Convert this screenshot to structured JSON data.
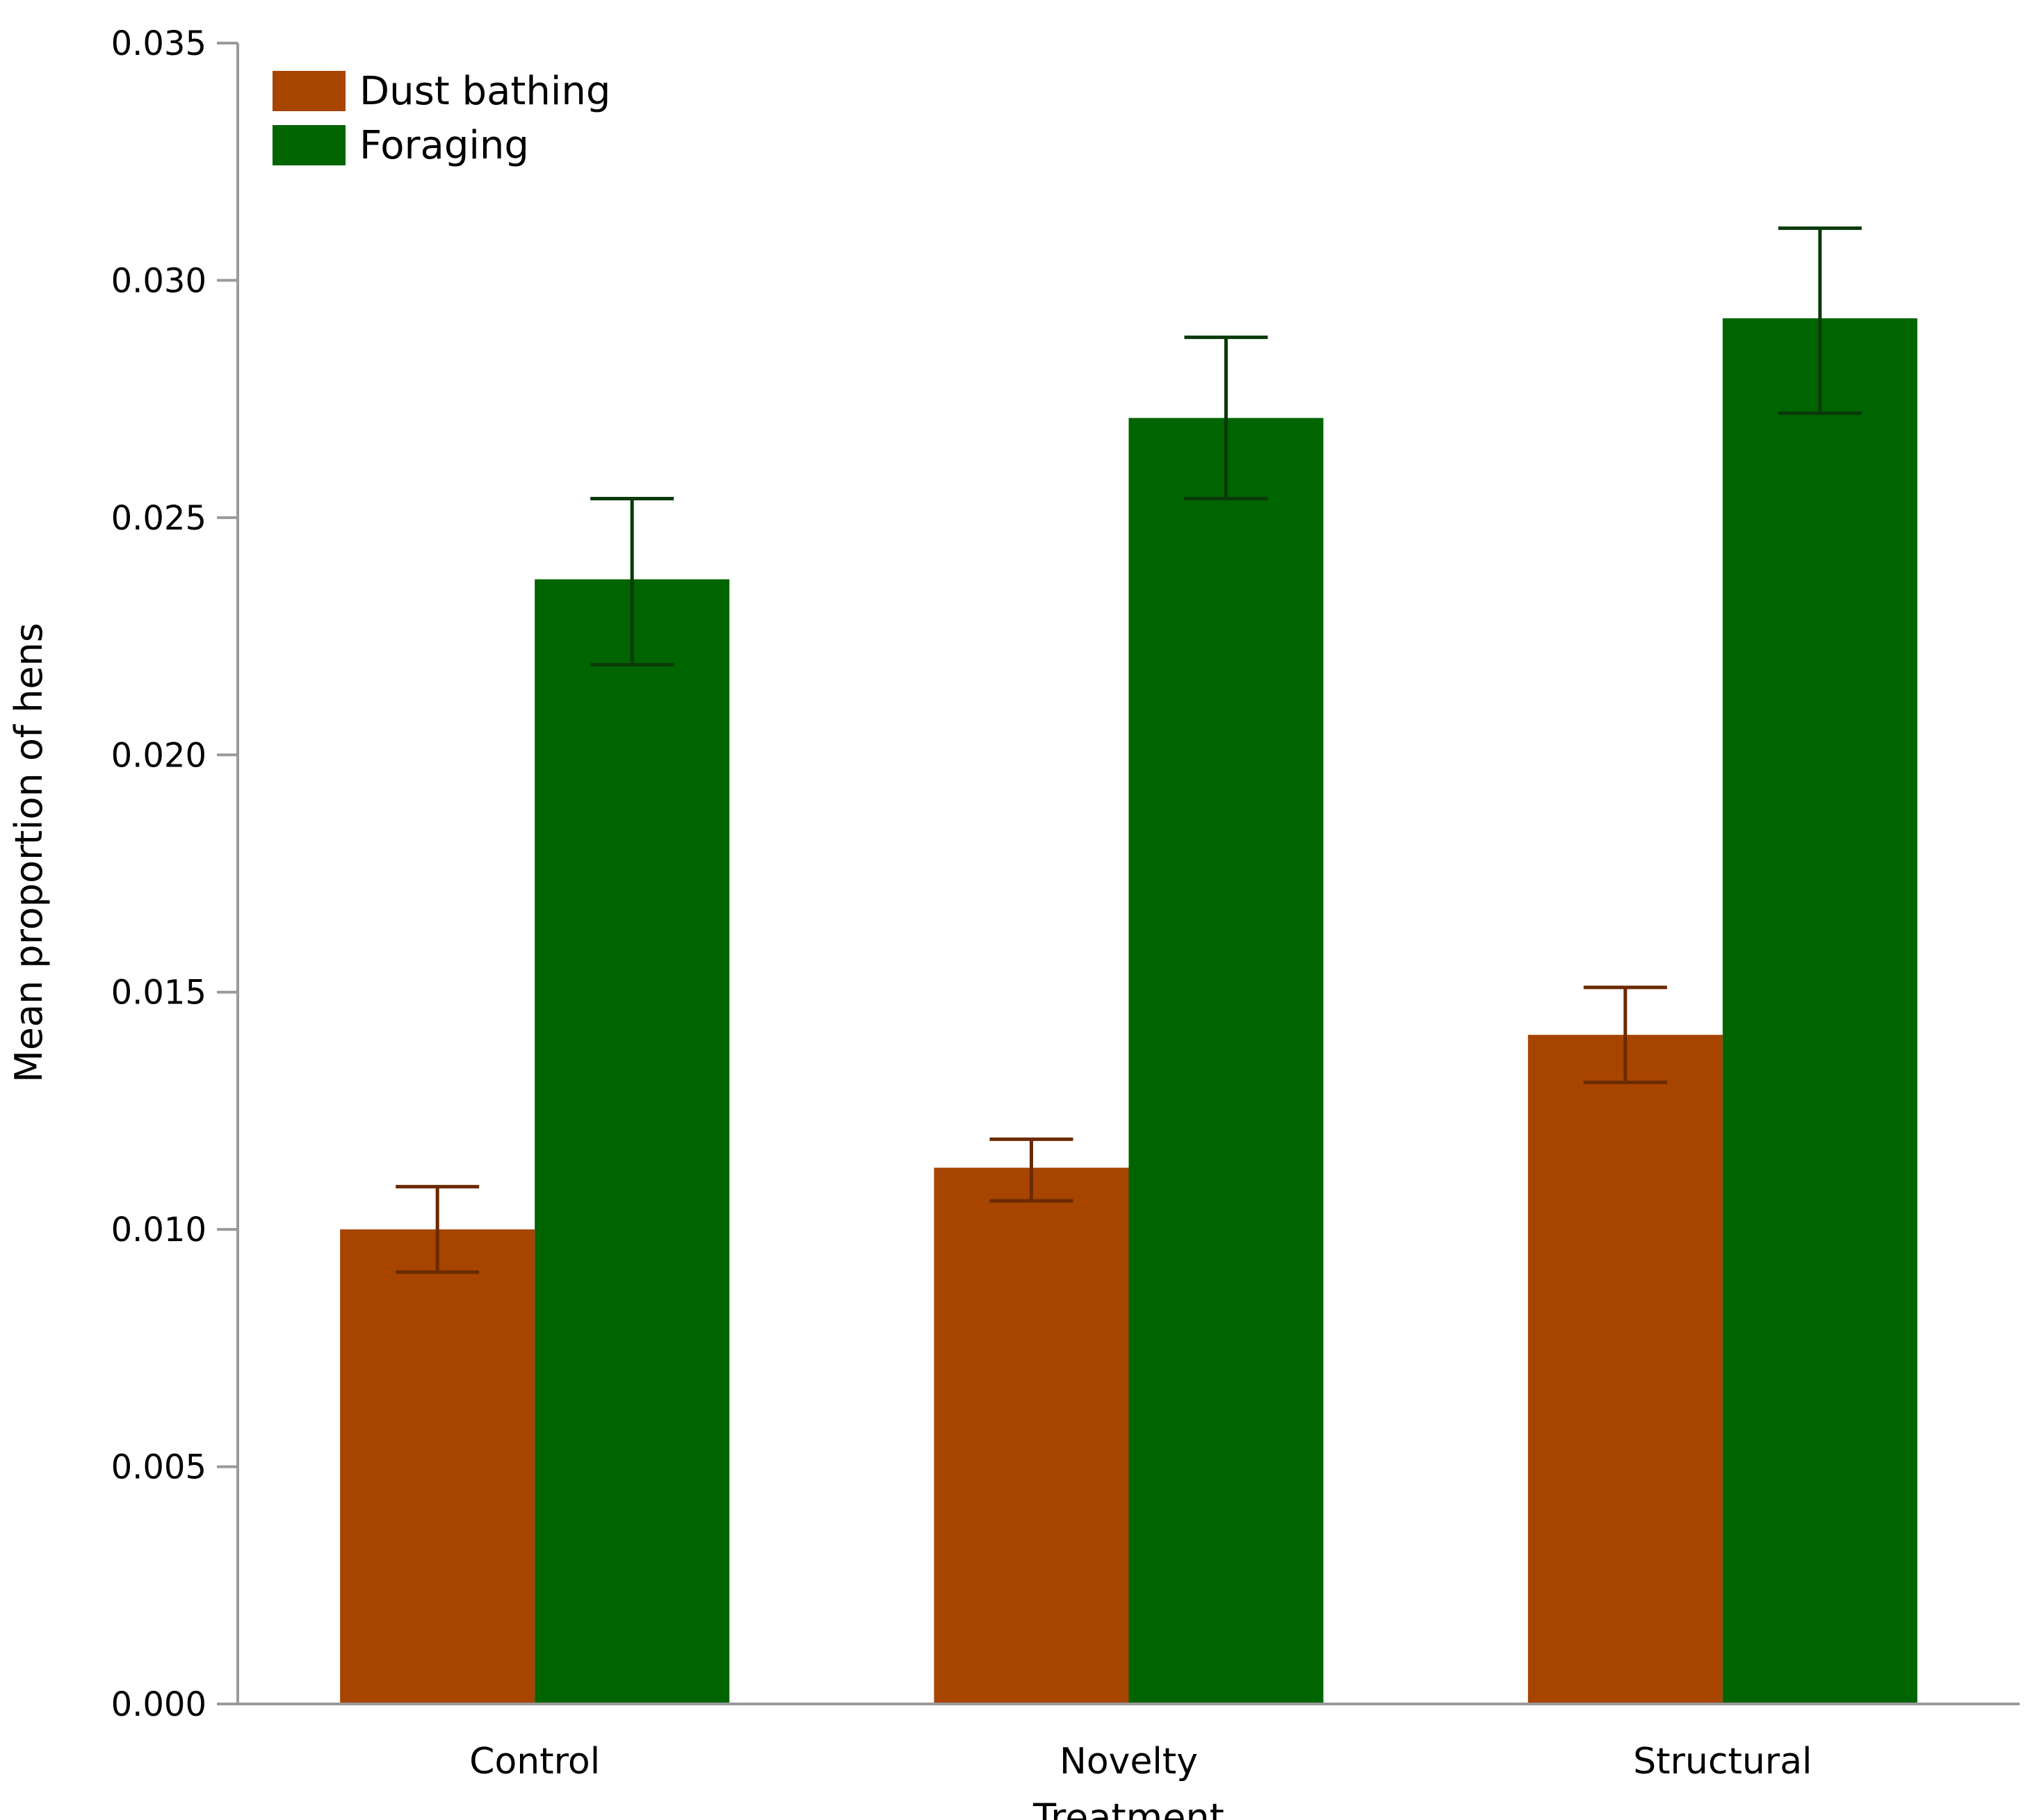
{
  "chart_data": {
    "type": "bar",
    "title": "",
    "xlabel": "Treatment",
    "ylabel": "Mean proportion of hens",
    "ylim": [
      0,
      0.035
    ],
    "yticks": [
      "0.000",
      "0.005",
      "0.010",
      "0.015",
      "0.020",
      "0.025",
      "0.030",
      "0.035"
    ],
    "ytick_values": [
      0,
      0.005,
      0.01,
      0.015,
      0.02,
      0.025,
      0.03,
      0.035
    ],
    "categories": [
      "Control",
      "Novelty",
      "Structural"
    ],
    "series": [
      {
        "name": "Dust bathing",
        "color": "#a64400",
        "error_color": "#6b2a00",
        "values": [
          0.01,
          0.0113,
          0.0141
        ],
        "error_low": [
          0.0091,
          0.0106,
          0.0131
        ],
        "error_high": [
          0.0109,
          0.0119,
          0.0151
        ]
      },
      {
        "name": "Foraging",
        "color": "#006400",
        "error_color": "#0a3a0a",
        "values": [
          0.0237,
          0.0271,
          0.0292
        ],
        "error_low": [
          0.0219,
          0.0254,
          0.0272
        ],
        "error_high": [
          0.0254,
          0.0288,
          0.0311
        ]
      }
    ],
    "legend_position": "top-left",
    "grid": false
  }
}
